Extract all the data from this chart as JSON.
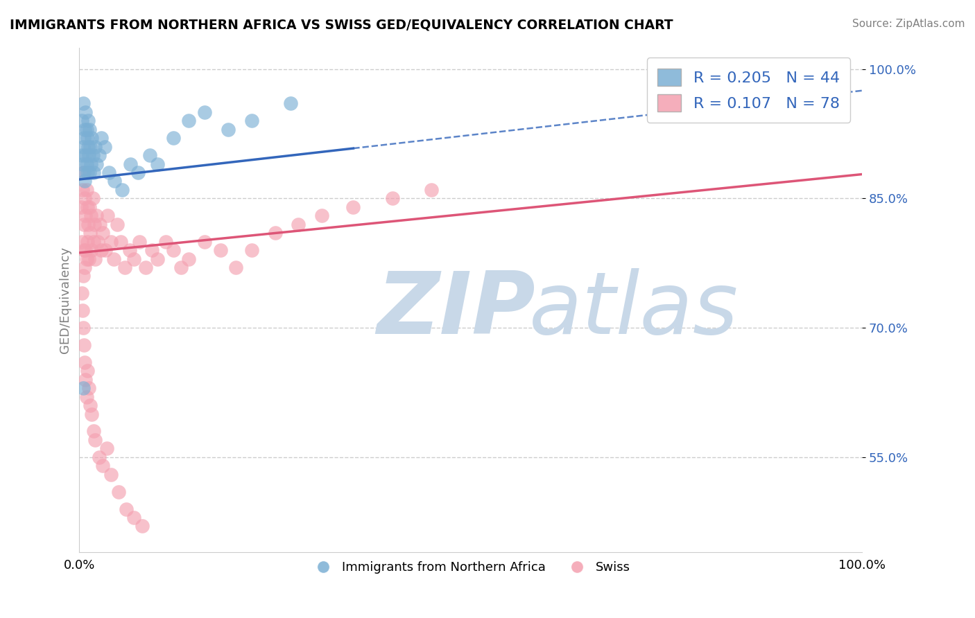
{
  "title": "IMMIGRANTS FROM NORTHERN AFRICA VS SWISS GED/EQUIVALENCY CORRELATION CHART",
  "source": "Source: ZipAtlas.com",
  "ylabel": "GED/Equivalency",
  "xmin": 0.0,
  "xmax": 1.0,
  "ymin": 0.44,
  "ymax": 1.025,
  "yticks": [
    0.55,
    0.7,
    0.85,
    1.0
  ],
  "ytick_labels": [
    "55.0%",
    "70.0%",
    "85.0%",
    "100.0%"
  ],
  "xtick_labels": [
    "0.0%",
    "100.0%"
  ],
  "legend_blue_label": "Immigrants from Northern Africa",
  "legend_pink_label": "Swiss",
  "r_blue": "0.205",
  "n_blue": "44",
  "r_pink": "0.107",
  "n_pink": "78",
  "blue_color": "#7BAFD4",
  "pink_color": "#F4A0B0",
  "blue_line_color": "#3366BB",
  "pink_line_color": "#DD5577",
  "blue_scatter_x": [
    0.003,
    0.003,
    0.004,
    0.005,
    0.005,
    0.006,
    0.006,
    0.007,
    0.007,
    0.008,
    0.008,
    0.009,
    0.009,
    0.01,
    0.01,
    0.011,
    0.011,
    0.012,
    0.013,
    0.013,
    0.014,
    0.015,
    0.016,
    0.017,
    0.018,
    0.02,
    0.022,
    0.025,
    0.028,
    0.032,
    0.038,
    0.045,
    0.055,
    0.065,
    0.075,
    0.09,
    0.1,
    0.12,
    0.14,
    0.16,
    0.19,
    0.22,
    0.27,
    0.005
  ],
  "blue_scatter_y": [
    0.9,
    0.94,
    0.89,
    0.91,
    0.96,
    0.88,
    0.92,
    0.87,
    0.93,
    0.9,
    0.95,
    0.89,
    0.93,
    0.88,
    0.92,
    0.91,
    0.94,
    0.9,
    0.88,
    0.93,
    0.91,
    0.89,
    0.92,
    0.9,
    0.88,
    0.91,
    0.89,
    0.9,
    0.92,
    0.91,
    0.88,
    0.87,
    0.86,
    0.89,
    0.88,
    0.9,
    0.89,
    0.92,
    0.94,
    0.95,
    0.93,
    0.94,
    0.96,
    0.63
  ],
  "pink_scatter_x": [
    0.002,
    0.003,
    0.004,
    0.005,
    0.005,
    0.006,
    0.006,
    0.007,
    0.007,
    0.008,
    0.008,
    0.009,
    0.009,
    0.01,
    0.01,
    0.011,
    0.012,
    0.013,
    0.014,
    0.015,
    0.016,
    0.017,
    0.018,
    0.019,
    0.02,
    0.022,
    0.024,
    0.026,
    0.028,
    0.03,
    0.033,
    0.036,
    0.04,
    0.044,
    0.048,
    0.053,
    0.058,
    0.064,
    0.07,
    0.077,
    0.085,
    0.093,
    0.1,
    0.11,
    0.12,
    0.13,
    0.14,
    0.16,
    0.18,
    0.2,
    0.22,
    0.25,
    0.28,
    0.31,
    0.35,
    0.4,
    0.45,
    0.003,
    0.004,
    0.005,
    0.006,
    0.007,
    0.008,
    0.009,
    0.01,
    0.012,
    0.014,
    0.016,
    0.018,
    0.02,
    0.025,
    0.03,
    0.035,
    0.04,
    0.05,
    0.06,
    0.07,
    0.08
  ],
  "pink_scatter_y": [
    0.84,
    0.8,
    0.86,
    0.76,
    0.88,
    0.82,
    0.79,
    0.85,
    0.77,
    0.83,
    0.79,
    0.86,
    0.78,
    0.84,
    0.8,
    0.82,
    0.78,
    0.84,
    0.81,
    0.83,
    0.79,
    0.85,
    0.8,
    0.82,
    0.78,
    0.83,
    0.8,
    0.82,
    0.79,
    0.81,
    0.79,
    0.83,
    0.8,
    0.78,
    0.82,
    0.8,
    0.77,
    0.79,
    0.78,
    0.8,
    0.77,
    0.79,
    0.78,
    0.8,
    0.79,
    0.77,
    0.78,
    0.8,
    0.79,
    0.77,
    0.79,
    0.81,
    0.82,
    0.83,
    0.84,
    0.85,
    0.86,
    0.74,
    0.72,
    0.7,
    0.68,
    0.66,
    0.64,
    0.62,
    0.65,
    0.63,
    0.61,
    0.6,
    0.58,
    0.57,
    0.55,
    0.54,
    0.56,
    0.53,
    0.51,
    0.49,
    0.48,
    0.47
  ],
  "blue_line_x0": 0.0,
  "blue_line_x1": 1.0,
  "blue_line_y0": 0.872,
  "blue_line_y1": 0.975,
  "pink_line_x0": 0.0,
  "pink_line_x1": 1.0,
  "pink_line_y0": 0.787,
  "pink_line_y1": 0.878
}
